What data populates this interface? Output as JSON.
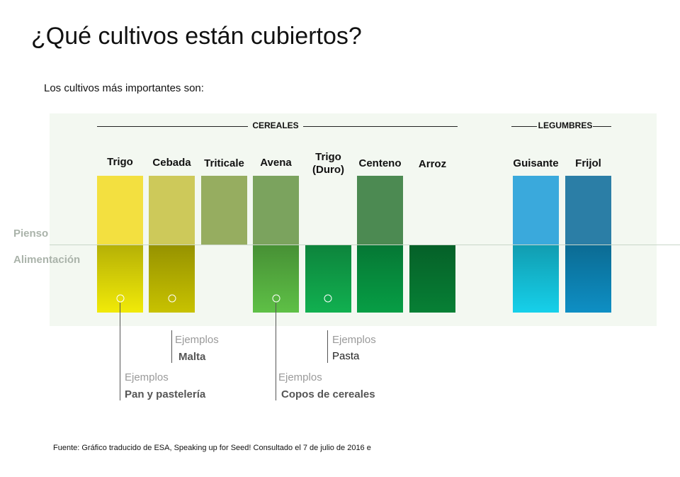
{
  "title": "¿Qué cultivos están cubiertos?",
  "subtitle": "Los cultivos más importantes son:",
  "groups": [
    {
      "label": "CEREALES"
    },
    {
      "label": "LEGUMBRES"
    }
  ],
  "axis": {
    "upper": "Pienso",
    "lower": "Alimentación"
  },
  "crops": [
    {
      "name": "Trigo",
      "pienso": true,
      "alimentacion": true,
      "color_top": "#f3e040",
      "color_bottom": "#f1ea08"
    },
    {
      "name": "Cebada",
      "pienso": true,
      "alimentacion": true,
      "color_top": "#cdc95a",
      "color_bottom": "#c8c200"
    },
    {
      "name": "Triticale",
      "pienso": true,
      "alimentacion": false,
      "color_top": "#96ad60"
    },
    {
      "name": "Avena",
      "pienso": true,
      "alimentacion": true,
      "color_top": "#7ba35e",
      "color_bottom": "#5ec046"
    },
    {
      "name": "Trigo (Duro)",
      "pienso": false,
      "alimentacion": true,
      "color_bottom": "#11b050"
    },
    {
      "name": "Centeno",
      "pienso": true,
      "alimentacion": true,
      "color_top": "#4c8a52",
      "color_bottom": "#079e45"
    },
    {
      "name": "Arroz",
      "pienso": false,
      "alimentacion": true,
      "color_bottom": "#078035"
    },
    {
      "name": "Guisante",
      "pienso": true,
      "alimentacion": true,
      "color_top": "#3aa9dc",
      "color_bottom": "#16d0ea"
    },
    {
      "name": "Frijol",
      "pienso": true,
      "alimentacion": true,
      "color_top": "#2b7ea6",
      "color_bottom": "#0e8fc4"
    }
  ],
  "examples": [
    {
      "label": "Ejemplos",
      "value": "Pan y pastelería"
    },
    {
      "label": "Ejemplos",
      "value": "Malta"
    },
    {
      "label": "Ejemplos",
      "value": "Copos de cereales"
    },
    {
      "label": "Ejemplos",
      "value": "Pasta"
    }
  ],
  "footer": "Fuente: Gráfico traducido de ESA, Speaking up for Seed! Consultado el 7 de julio de 2016 e"
}
